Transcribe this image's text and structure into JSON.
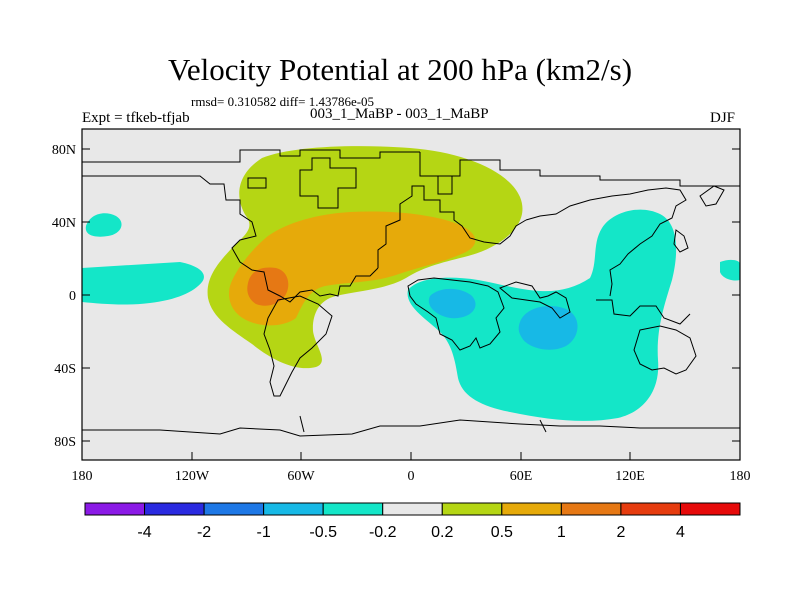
{
  "title": "Velocity Potential at 200 hPa (km2/s)",
  "stats": "rmsd= 0.310582 diff= 1.43786e-05",
  "experiment": "Expt = tfkeb-tfjab",
  "comparison": "003_1_MaBP - 003_1_MaBP",
  "season": "DJF",
  "lat_labels": [
    "80N",
    "40N",
    "0",
    "40S",
    "80S"
  ],
  "lon_labels": [
    "180",
    "120W",
    "60W",
    "0",
    "60E",
    "120E",
    "180"
  ],
  "colorbar": {
    "labels": [
      "-4",
      "-2",
      "-1",
      "-0.5",
      "-0.2",
      "0.2",
      "0.5",
      "1",
      "2",
      "4"
    ],
    "colors": [
      "#8b1ae6",
      "#2a2ae0",
      "#1e78e6",
      "#17b9e6",
      "#14e6c8",
      "#e8e8e8",
      "#b5d614",
      "#e6aa0a",
      "#e67814",
      "#e63c0f",
      "#e60a0a"
    ]
  },
  "colors": {
    "background_value": "#e8e8e8",
    "neg_0_2": "#14e6c8",
    "neg_0_5": "#17b9e6",
    "pos_0_2": "#b5d614",
    "pos_0_5": "#e6aa0a",
    "pos_1": "#e67814"
  }
}
